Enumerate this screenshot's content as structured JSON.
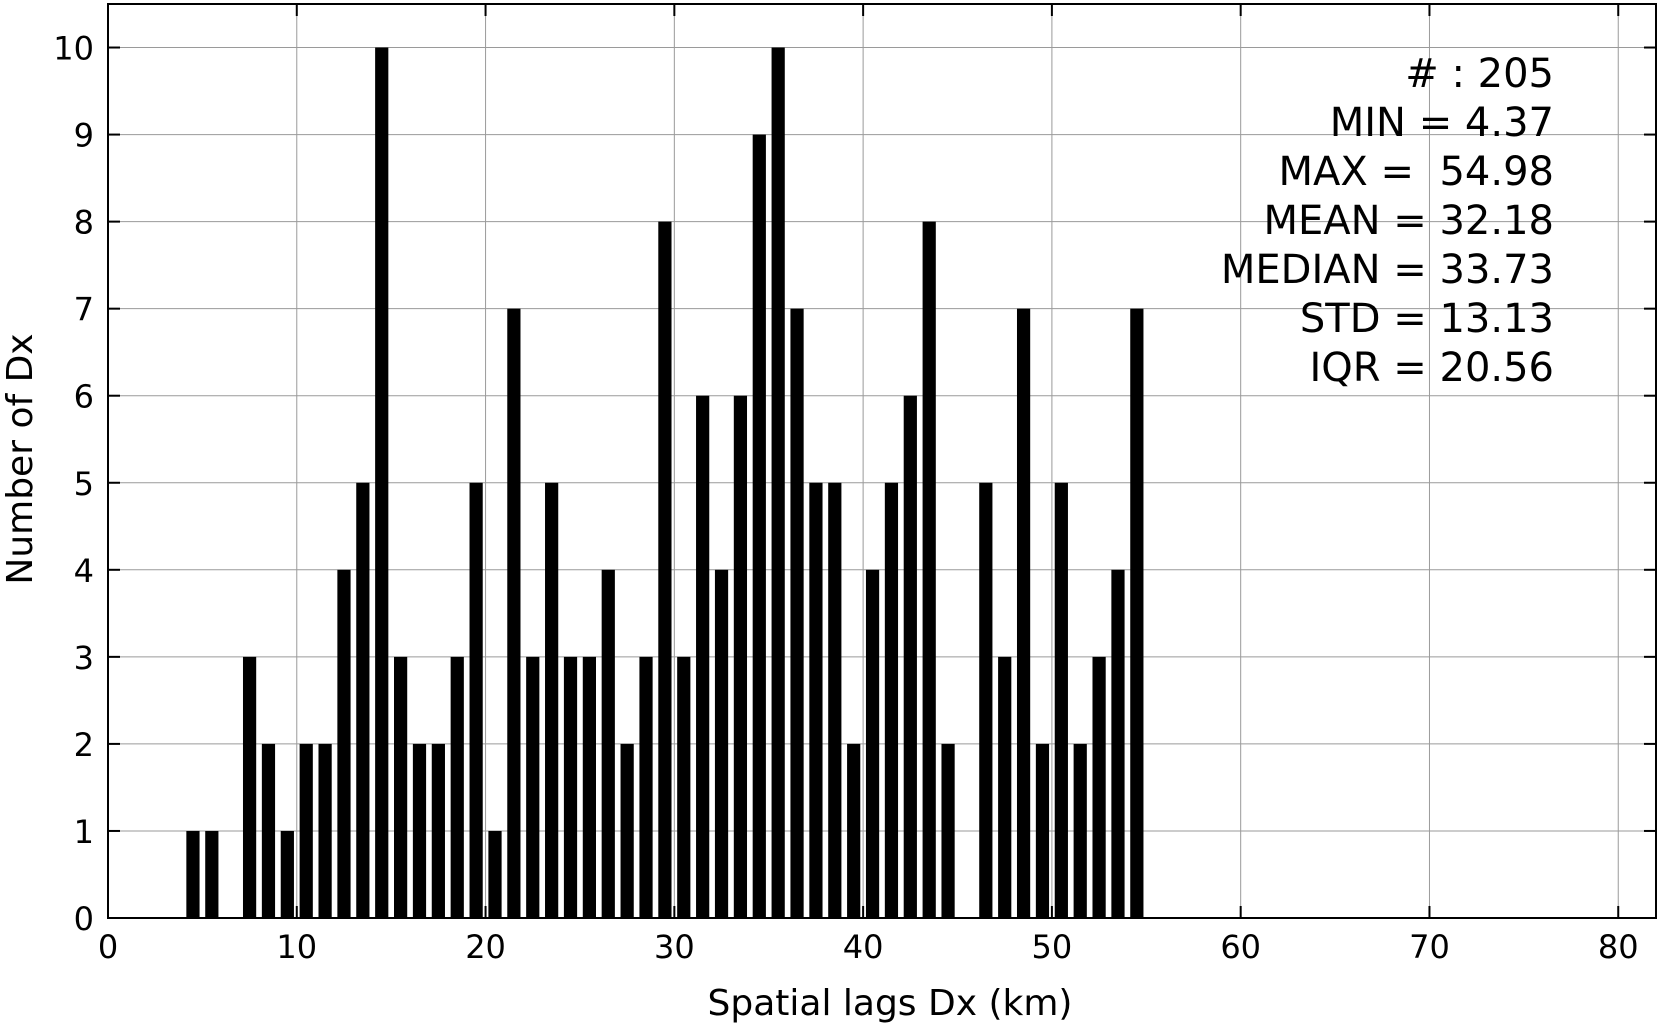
{
  "chart_data": {
    "type": "bar",
    "xlabel": "Spatial lags Dx (km)",
    "ylabel": "Number of Dx",
    "xlim": [
      0,
      82
    ],
    "ylim": [
      0,
      10.5
    ],
    "xticks": [
      0,
      10,
      20,
      30,
      40,
      50,
      60,
      70,
      80
    ],
    "xtick_labels": [
      "0",
      "10",
      "20",
      "30",
      "40",
      "50",
      "60",
      "70",
      "80"
    ],
    "yticks": [
      0,
      1,
      2,
      3,
      4,
      5,
      6,
      7,
      8,
      9,
      10
    ],
    "ytick_labels": [
      "0",
      "1",
      "2",
      "3",
      "4",
      "5",
      "6",
      "7",
      "8",
      "9",
      "10"
    ],
    "grid": true,
    "bin_width": 1,
    "bar_width": 0.7,
    "x": [
      4.5,
      5.5,
      7.5,
      8.5,
      9.5,
      10.5,
      11.5,
      12.5,
      13.5,
      14.5,
      15.5,
      16.5,
      17.5,
      18.5,
      19.5,
      20.5,
      21.5,
      22.5,
      23.5,
      24.5,
      25.5,
      26.5,
      27.5,
      28.5,
      29.5,
      30.5,
      31.5,
      32.5,
      33.5,
      34.5,
      35.5,
      36.5,
      37.5,
      38.5,
      39.5,
      40.5,
      41.5,
      42.5,
      43.5,
      44.5,
      46.5,
      47.5,
      48.5,
      49.5,
      50.5,
      51.5,
      52.5,
      53.5,
      54.5
    ],
    "values": [
      1,
      1,
      3,
      2,
      1,
      2,
      2,
      4,
      5,
      10,
      3,
      2,
      2,
      3,
      5,
      1,
      7,
      3,
      5,
      3,
      3,
      4,
      2,
      3,
      8,
      3,
      6,
      4,
      6,
      9,
      10,
      7,
      5,
      5,
      2,
      4,
      5,
      6,
      8,
      2,
      5,
      3,
      7,
      2,
      5,
      2,
      3,
      4,
      7
    ],
    "annotation": {
      "position": "top-right",
      "lines": [
        "# : 205",
        "MIN = 4.37",
        "MAX =  54.98",
        "MEAN = 32.18",
        "MEDIAN = 33.73",
        "STD = 13.13",
        "IQR = 20.56"
      ]
    }
  }
}
